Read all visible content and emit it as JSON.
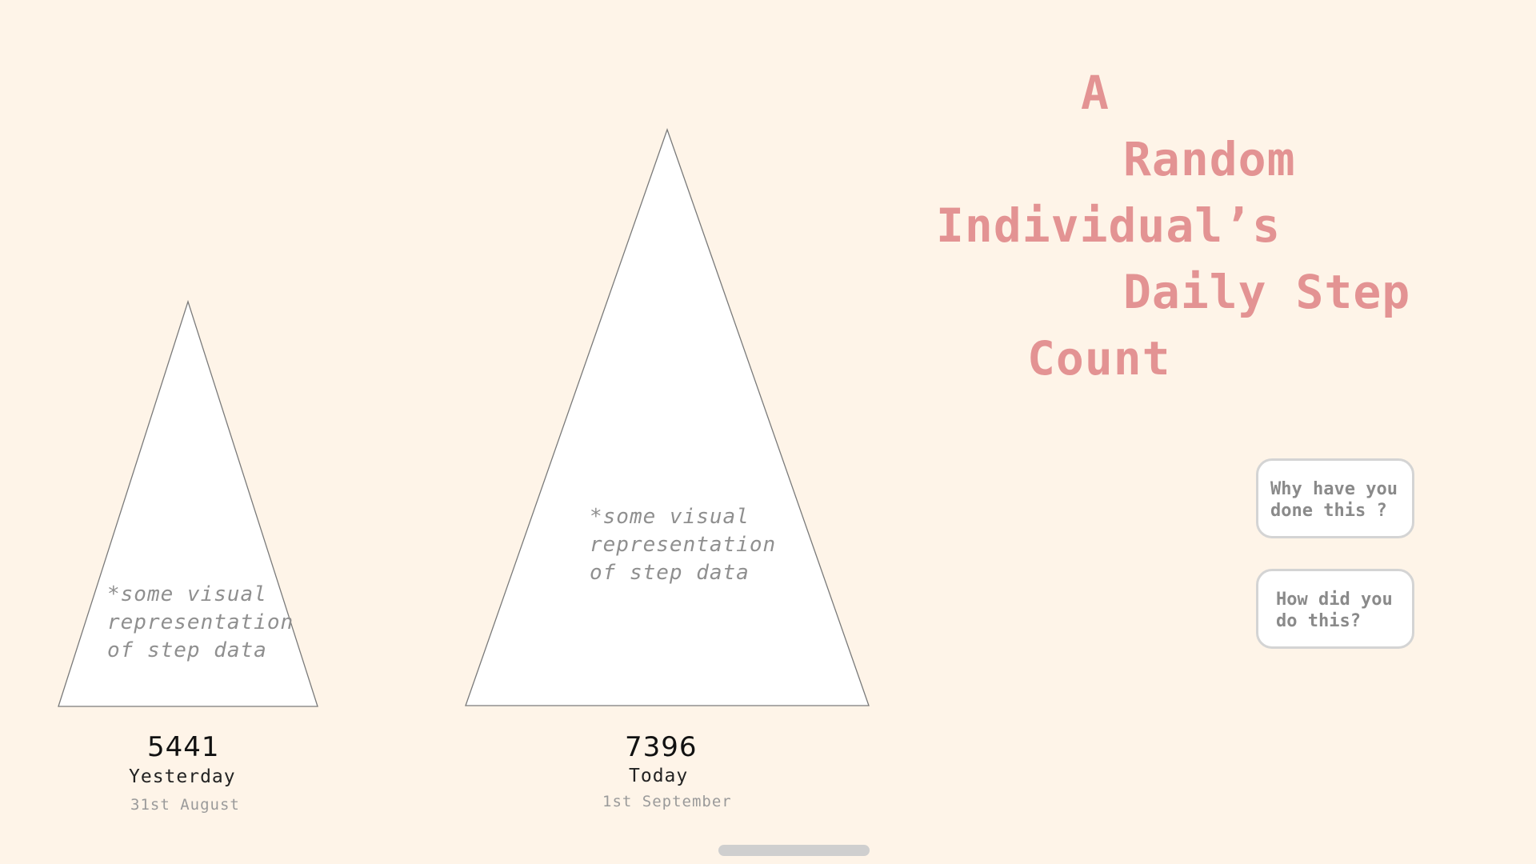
{
  "title": {
    "words": [
      "A",
      "Random",
      "Individual’s",
      "Daily Step",
      "Count"
    ]
  },
  "days": [
    {
      "steps": "5441",
      "label": "Yesterday",
      "date": "31st August",
      "note_lines": [
        "*some visual",
        "representation",
        "of step data"
      ]
    },
    {
      "steps": "7396",
      "label": "Today",
      "date": "1st September",
      "note_lines": [
        "*some visual",
        "representation",
        "of step data"
      ]
    }
  ],
  "buttons": {
    "why_lines": [
      "Why have you",
      "done this ?"
    ],
    "how_lines": [
      "How did you",
      "do this?"
    ]
  },
  "colors": {
    "background": "#fef4e8",
    "title": "#e39393",
    "triangle_fill": "#ffffff",
    "triangle_stroke": "#7a7a7a"
  }
}
